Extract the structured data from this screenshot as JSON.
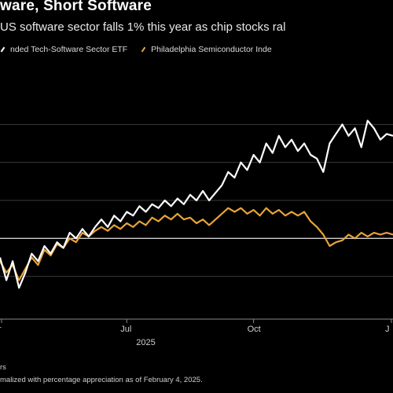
{
  "header": {
    "title": "ware, Short Software",
    "subtitle": "US software sector falls 1% this year as chip stocks ral"
  },
  "legend": [
    {
      "label": "nded Tech-Software Sector ETF",
      "color": "#ffffff"
    },
    {
      "label": "Philadelphia Semiconductor Inde",
      "color": "#e8a33a"
    }
  ],
  "footer": {
    "source": "rs",
    "note": "malized with percentage appreciation as of February 4, 2025."
  },
  "colors": {
    "software": "#ffffff",
    "semis": "#e8a33a",
    "grid": "#3a3a3a",
    "baseline": "#cfcfcf"
  },
  "chart_data": {
    "type": "line",
    "title": "ware, Short Software",
    "subtitle": "US software sector falls 1% this year as chip stocks ral",
    "x_tick_labels": [
      "r",
      "Jul",
      "Oct",
      "J"
    ],
    "x_year_label": "2025",
    "x_ticks_month": [
      0,
      3,
      6,
      9
    ],
    "ylim": [
      -40,
      80
    ],
    "gridlines": [
      -20,
      0,
      20,
      40,
      60
    ],
    "baseline": 0,
    "grid": true,
    "legend_position": "top",
    "series": [
      {
        "name": "nded Tech-Software Sector ETF",
        "color": "#ffffff",
        "points": [
          [
            0,
            -10
          ],
          [
            0.15,
            -22
          ],
          [
            0.3,
            -12
          ],
          [
            0.45,
            -26
          ],
          [
            0.6,
            -18
          ],
          [
            0.75,
            -8
          ],
          [
            0.9,
            -12
          ],
          [
            1.05,
            -4
          ],
          [
            1.2,
            -8
          ],
          [
            1.35,
            -2
          ],
          [
            1.5,
            -5
          ],
          [
            1.65,
            3
          ],
          [
            1.8,
            0
          ],
          [
            1.95,
            5
          ],
          [
            2.1,
            1
          ],
          [
            2.25,
            6
          ],
          [
            2.4,
            10
          ],
          [
            2.55,
            6
          ],
          [
            2.7,
            12
          ],
          [
            2.85,
            9
          ],
          [
            3.0,
            14
          ],
          [
            3.15,
            12
          ],
          [
            3.3,
            17
          ],
          [
            3.45,
            14
          ],
          [
            3.6,
            18
          ],
          [
            3.75,
            16
          ],
          [
            3.9,
            20
          ],
          [
            4.05,
            17
          ],
          [
            4.2,
            21
          ],
          [
            4.35,
            18
          ],
          [
            4.5,
            23
          ],
          [
            4.65,
            20
          ],
          [
            4.8,
            25
          ],
          [
            4.95,
            20
          ],
          [
            5.1,
            24
          ],
          [
            5.25,
            28
          ],
          [
            5.4,
            35
          ],
          [
            5.55,
            32
          ],
          [
            5.7,
            40
          ],
          [
            5.85,
            36
          ],
          [
            6.0,
            44
          ],
          [
            6.15,
            40
          ],
          [
            6.3,
            50
          ],
          [
            6.45,
            45
          ],
          [
            6.6,
            54
          ],
          [
            6.75,
            48
          ],
          [
            6.9,
            52
          ],
          [
            7.05,
            46
          ],
          [
            7.2,
            50
          ],
          [
            7.35,
            44
          ],
          [
            7.5,
            42
          ],
          [
            7.65,
            35
          ],
          [
            7.8,
            50
          ],
          [
            7.95,
            55
          ],
          [
            8.1,
            60
          ],
          [
            8.25,
            54
          ],
          [
            8.4,
            58
          ],
          [
            8.55,
            48
          ],
          [
            8.7,
            62
          ],
          [
            8.85,
            58
          ],
          [
            9.0,
            52
          ],
          [
            9.15,
            55
          ],
          [
            9.3,
            54
          ]
        ]
      },
      {
        "name": "Philadelphia Semiconductor Inde",
        "color": "#e8a33a",
        "points": [
          [
            0,
            -12
          ],
          [
            0.15,
            -18
          ],
          [
            0.3,
            -14
          ],
          [
            0.45,
            -22
          ],
          [
            0.6,
            -16
          ],
          [
            0.75,
            -10
          ],
          [
            0.9,
            -14
          ],
          [
            1.05,
            -6
          ],
          [
            1.2,
            -9
          ],
          [
            1.35,
            -3
          ],
          [
            1.5,
            -5
          ],
          [
            1.65,
            0
          ],
          [
            1.8,
            -2
          ],
          [
            1.95,
            3
          ],
          [
            2.1,
            1
          ],
          [
            2.25,
            4
          ],
          [
            2.4,
            6
          ],
          [
            2.55,
            4
          ],
          [
            2.7,
            7
          ],
          [
            2.85,
            5
          ],
          [
            3.0,
            8
          ],
          [
            3.15,
            6
          ],
          [
            3.3,
            9
          ],
          [
            3.45,
            7
          ],
          [
            3.6,
            11
          ],
          [
            3.75,
            9
          ],
          [
            3.9,
            12
          ],
          [
            4.05,
            10
          ],
          [
            4.2,
            13
          ],
          [
            4.35,
            10
          ],
          [
            4.5,
            11
          ],
          [
            4.65,
            8
          ],
          [
            4.8,
            10
          ],
          [
            4.95,
            7
          ],
          [
            5.1,
            10
          ],
          [
            5.25,
            13
          ],
          [
            5.4,
            16
          ],
          [
            5.55,
            14
          ],
          [
            5.7,
            16
          ],
          [
            5.85,
            13
          ],
          [
            6.0,
            15
          ],
          [
            6.15,
            12
          ],
          [
            6.3,
            16
          ],
          [
            6.45,
            13
          ],
          [
            6.6,
            15
          ],
          [
            6.75,
            12
          ],
          [
            6.9,
            14
          ],
          [
            7.05,
            12
          ],
          [
            7.2,
            14
          ],
          [
            7.35,
            9
          ],
          [
            7.5,
            6
          ],
          [
            7.65,
            2
          ],
          [
            7.8,
            -4
          ],
          [
            7.95,
            -2
          ],
          [
            8.1,
            -1
          ],
          [
            8.25,
            2
          ],
          [
            8.4,
            0
          ],
          [
            8.55,
            3
          ],
          [
            8.7,
            1
          ],
          [
            8.85,
            3
          ],
          [
            9.0,
            2
          ],
          [
            9.15,
            3
          ],
          [
            9.3,
            2
          ]
        ]
      }
    ]
  }
}
